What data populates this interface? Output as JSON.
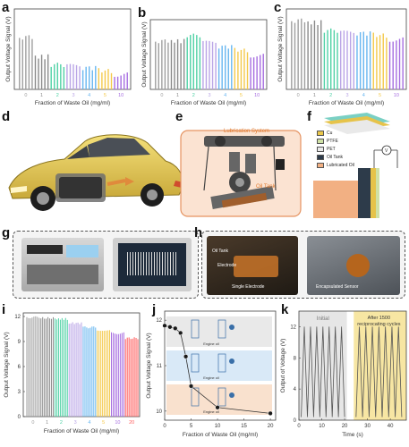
{
  "panels": {
    "a": "a",
    "b": "b",
    "c": "c",
    "d": "d",
    "e": "e",
    "f": "f",
    "g": "g",
    "h": "h",
    "i": "i",
    "j": "j",
    "k": "k"
  },
  "top_charts": {
    "ylabel": "Output Voltage Signal (V)",
    "xlabel": "Fraction of Waste Oil (mg/ml)",
    "categories": [
      "0",
      "1",
      "2",
      "3",
      "4",
      "5",
      "10"
    ],
    "colors": [
      "#9e9e9e",
      "#8a8a8a",
      "#4fd1a5",
      "#b9a4e6",
      "#67b6f0",
      "#f4c94a",
      "#a66de0"
    ]
  },
  "chart_data": [
    {
      "type": "bar",
      "panel": "a",
      "xlabel": "Fraction of Waste Oil (mg/ml)",
      "ylabel": "Output Voltage Signal (V)",
      "categories": [
        "0",
        "1",
        "2",
        "3",
        "4",
        "5",
        "10"
      ],
      "values": [
        1.25,
        0.78,
        0.58,
        0.55,
        0.52,
        0.45,
        0.36
      ]
    },
    {
      "type": "bar",
      "panel": "b",
      "xlabel": "Fraction of Waste Oil (mg/ml)",
      "ylabel": "Output Voltage Signal (V)",
      "categories": [
        "0",
        "1",
        "2",
        "3",
        "4",
        "5",
        "10"
      ],
      "values": [
        1.35,
        1.35,
        1.5,
        1.3,
        1.2,
        1.1,
        0.95
      ]
    },
    {
      "type": "bar",
      "panel": "c",
      "xlabel": "Fraction of Waste Oil (mg/ml)",
      "ylabel": "Output Voltage Signal (V)",
      "categories": [
        "0",
        "1",
        "2",
        "3",
        "4",
        "5",
        "10"
      ],
      "values": [
        1.65,
        1.6,
        1.4,
        1.35,
        1.35,
        1.3,
        1.2
      ]
    },
    {
      "type": "bar",
      "panel": "i",
      "xlabel": "Fraction of Waste Oil (mg/ml)",
      "ylabel": "Output Voltage Signal (V)",
      "ylim": [
        0,
        12
      ],
      "yticks": [
        "0",
        "3",
        "6",
        "9",
        "12"
      ],
      "categories": [
        "0",
        "1",
        "2",
        "3",
        "4",
        "5",
        "10",
        "20"
      ],
      "colors": [
        "#9e9e9e",
        "#8a8a8a",
        "#4fd1a5",
        "#b9a4e6",
        "#67b6f0",
        "#f4c94a",
        "#a66de0",
        "#ff5a5a"
      ],
      "values": [
        11.9,
        11.8,
        11.7,
        11.2,
        10.7,
        10.4,
        10.0,
        9.4
      ]
    },
    {
      "type": "line",
      "panel": "j",
      "xlabel": "Fraction of Waste Oil (mg/ml)",
      "ylabel": "Output Voltage Signal (V)",
      "ylim": [
        9.8,
        12.2
      ],
      "xlim": [
        0,
        21
      ],
      "xticks": [
        "0",
        "5",
        "10",
        "15",
        "20"
      ],
      "yticks": [
        "10",
        "11",
        "12"
      ],
      "x": [
        0,
        1,
        2,
        3,
        4,
        5,
        10,
        20
      ],
      "y": [
        11.88,
        11.85,
        11.82,
        11.72,
        11.2,
        10.55,
        10.08,
        9.95
      ]
    },
    {
      "type": "line",
      "panel": "k",
      "xlabel": "Time (s)",
      "ylabel": "Output of Voltage (V)",
      "ylim": [
        0,
        14
      ],
      "xlim": [
        0,
        47
      ],
      "xticks": [
        "0",
        "10",
        "20",
        "30",
        "40"
      ],
      "yticks": [
        "0",
        "4",
        "8",
        "12"
      ],
      "annotations": [
        "Initial",
        "After 1500 reciprocating cycles"
      ],
      "peak": 12,
      "cycles_per_segment": 7
    }
  ],
  "legend_f": [
    "Cu",
    "PTFE",
    "PET",
    "Oil Tank",
    "Lubricated Oil"
  ],
  "legend_f_colors": [
    "#e9c64a",
    "#cfe1a6",
    "#e9e9e9",
    "#2d3b4a",
    "#f2b083"
  ],
  "labels_e": {
    "crank": "Lubrication System",
    "tank": "Oil Tank"
  },
  "labels_h": {
    "tank": "Oil Tank",
    "electrode": "Electrode",
    "single": "Single Electrode",
    "enc": "Encapsulated Sensor"
  },
  "labels_j": [
    "Engine oil",
    "Engine oil",
    "Engine oil"
  ]
}
